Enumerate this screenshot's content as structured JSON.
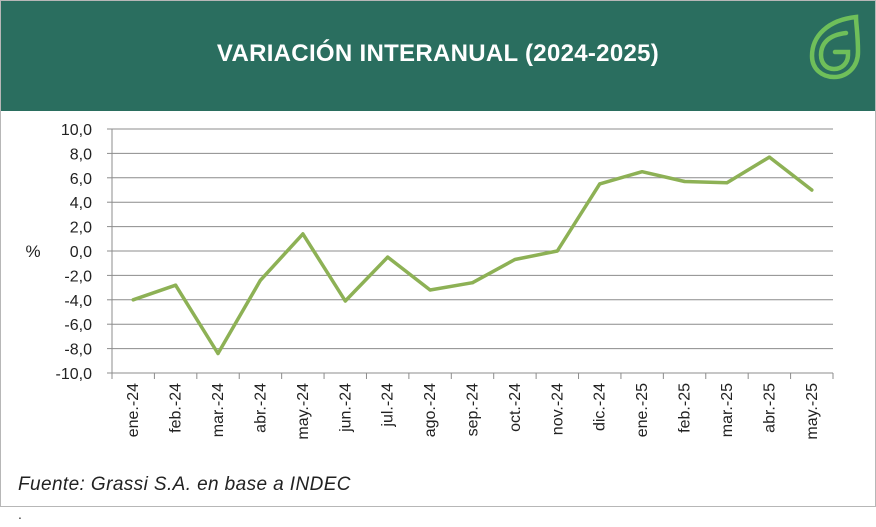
{
  "header": {
    "title": "VARIACIÓN INTERANUAL (2024-2025)",
    "bg_color": "#2a6e5f",
    "logo_icon": "grassi-leaf-logo"
  },
  "footer": {
    "source": "Fuente: Grassi S.A.  en base a INDEC",
    "dot": "."
  },
  "chart_data": {
    "type": "line",
    "title": "VARIACIÓN INTERANUAL (2024-2025)",
    "ylabel": "%",
    "xlabel": "",
    "ylim": [
      -10,
      10
    ],
    "yticks": [
      "10,0",
      "8,0",
      "6,0",
      "4,0",
      "2,0",
      "0,0",
      "-2,0",
      "-4,0",
      "-6,0",
      "-8,0",
      "-10,0"
    ],
    "grid": true,
    "legend": "none",
    "categories": [
      "ene.-24",
      "feb.-24",
      "mar.-24",
      "abr.-24",
      "may.-24",
      "jun.-24",
      "jul.-24",
      "ago.-24",
      "sep.-24",
      "oct.-24",
      "nov.-24",
      "dic.-24",
      "ene.-25",
      "feb.-25",
      "mar.-25",
      "abr.-25",
      "may.-25"
    ],
    "series": [
      {
        "values": [
          -4.0,
          -2.8,
          -8.4,
          -2.4,
          1.4,
          -4.1,
          -0.5,
          -3.2,
          -2.6,
          -0.7,
          0.0,
          5.5,
          6.5,
          5.7,
          5.6,
          7.7,
          5.0
        ],
        "color": "#8db155"
      }
    ]
  }
}
